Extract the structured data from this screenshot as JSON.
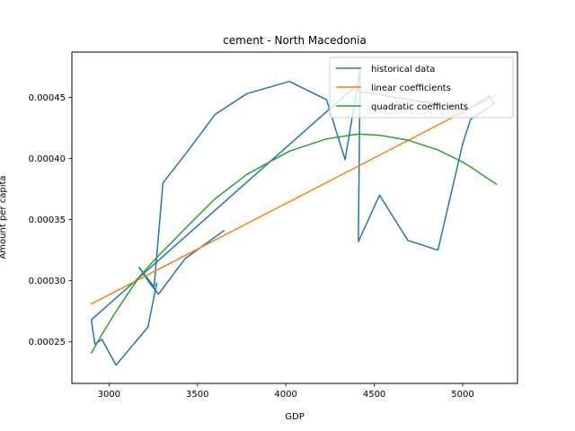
{
  "chart_data": {
    "type": "line",
    "title": "cement - North Macedonia",
    "xlabel": "GDP",
    "ylabel": "Amount per capita",
    "xlim": [
      2790,
      5310
    ],
    "ylim": [
      0.000216,
      0.000487
    ],
    "xticks": [
      3000,
      3500,
      4000,
      4500,
      5000
    ],
    "xtick_labels": [
      "3000",
      "3500",
      "4000",
      "4500",
      "5000"
    ],
    "yticks": [
      0.00025,
      0.0003,
      0.00035,
      0.0004,
      0.00045
    ],
    "ytick_labels": [
      "0.00025",
      "0.00030",
      "0.00035",
      "0.00040",
      "0.00045"
    ],
    "grid": false,
    "legend_position": "top-right",
    "series": [
      {
        "name": "historical data",
        "color": "#1f77b4",
        "x": [
          3650,
          3430,
          3280,
          3230,
          3170,
          3255,
          3305,
          3440,
          3600,
          3780,
          4020,
          4230,
          4335,
          4420,
          4410,
          4530,
          4690,
          4860,
          5000,
          5045,
          5180,
          5150,
          5030,
          4410,
          4400,
          2900,
          2920,
          2960,
          2990,
          3040,
          3220,
          3270
        ],
        "y": [
          0.000341,
          0.000318,
          0.000289,
          0.000298,
          0.000311,
          0.000295,
          0.00038,
          0.000405,
          0.000436,
          0.000453,
          0.000463,
          0.000448,
          0.000399,
          0.000472,
          0.000332,
          0.00037,
          0.000333,
          0.000325,
          0.000412,
          0.000432,
          0.000445,
          0.000451,
          0.00044,
          0.000455,
          0.00046,
          0.000268,
          0.000248,
          0.000252,
          0.000244,
          0.000231,
          0.000262,
          0.000298
        ]
      },
      {
        "name": "linear coefficients",
        "color": "#ff7f0e",
        "x": [
          2900,
          5190
        ],
        "y": [
          0.000281,
          0.000452
        ]
      },
      {
        "name": "quadratic coefficients",
        "color": "#2ca02c",
        "x": [
          2900,
          2960,
          3040,
          3170,
          3270,
          3440,
          3600,
          3780,
          4020,
          4230,
          4410,
          4530,
          4690,
          4860,
          5000,
          5045,
          5190
        ],
        "y": [
          0.000241,
          0.000256,
          0.000275,
          0.000303,
          0.000319,
          0.000344,
          0.000367,
          0.000387,
          0.000406,
          0.000416,
          0.00042,
          0.000419,
          0.000415,
          0.000407,
          0.000397,
          0.000393,
          0.000379
        ]
      }
    ]
  }
}
